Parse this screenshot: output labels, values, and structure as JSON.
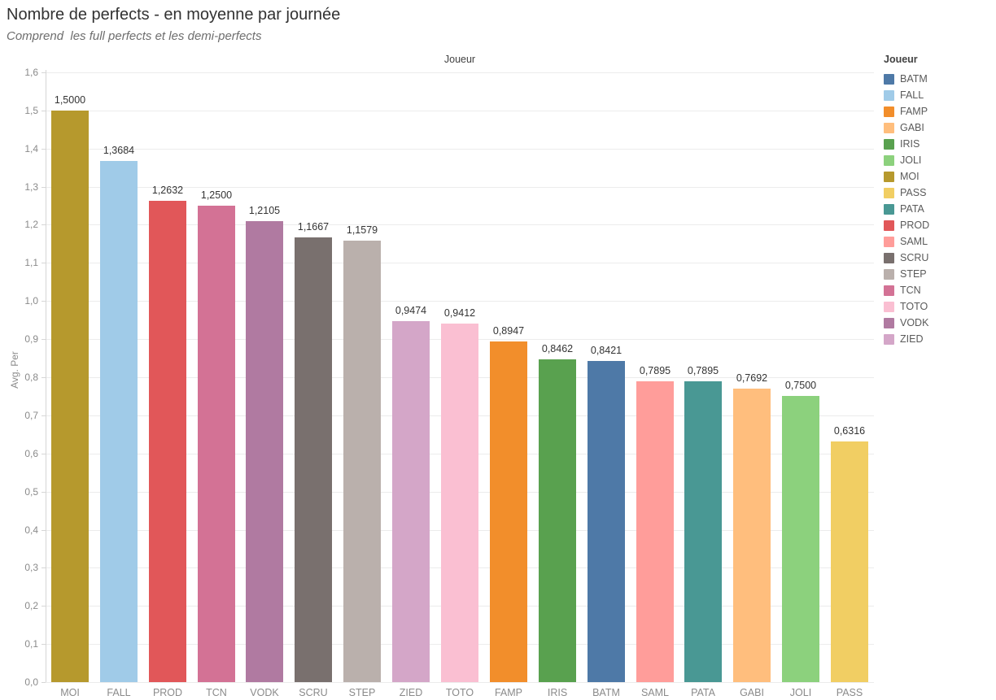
{
  "chart_data": {
    "type": "bar",
    "title": "Nombre de perfects - en moyenne par journée",
    "subtitle": "Comprend  les full perfects et les demi-perfects",
    "x_axis_header": "Joueur",
    "ylabel": "Avg. Per",
    "ylim": [
      0,
      1.6
    ],
    "ytick_step": 0.1,
    "ytick_labels": [
      "0,0",
      "0,1",
      "0,2",
      "0,3",
      "0,4",
      "0,5",
      "0,6",
      "0,7",
      "0,8",
      "0,9",
      "1,0",
      "1,1",
      "1,2",
      "1,3",
      "1,4",
      "1,5",
      "1,6"
    ],
    "grid": true,
    "decimal_separator": ",",
    "categories": [
      "MOI",
      "FALL",
      "PROD",
      "TCN",
      "VODK",
      "SCRU",
      "STEP",
      "ZIED",
      "TOTO",
      "FAMP",
      "IRIS",
      "BATM",
      "SAML",
      "PATA",
      "GABI",
      "JOLI",
      "PASS"
    ],
    "values": [
      1.5,
      1.3684,
      1.2632,
      1.25,
      1.2105,
      1.1667,
      1.1579,
      0.9474,
      0.9412,
      0.8947,
      0.8462,
      0.8421,
      0.7895,
      0.7895,
      0.7692,
      0.75,
      0.6316
    ],
    "value_labels": [
      "1,5000",
      "1,3684",
      "1,2632",
      "1,2500",
      "1,2105",
      "1,1667",
      "1,1579",
      "0,9474",
      "0,9412",
      "0,8947",
      "0,8462",
      "0,8421",
      "0,7895",
      "0,7895",
      "0,7692",
      "0,7500",
      "0,6316"
    ],
    "colors": {
      "BATM": "#4e79a7",
      "FALL": "#a0cbe8",
      "FAMP": "#f28e2b",
      "GABI": "#ffbe7d",
      "IRIS": "#59a14f",
      "JOLI": "#8cd17d",
      "MOI": "#b6992d",
      "PASS": "#f1ce63",
      "PATA": "#499894",
      "PROD": "#e15759",
      "SAML": "#ff9d9a",
      "SCRU": "#79706e",
      "STEP": "#bab0ac",
      "TCN": "#d37295",
      "TOTO": "#fabfd2",
      "VODK": "#b07aa1",
      "ZIED": "#d4a6c8"
    },
    "legend": {
      "title": "Joueur",
      "position": "right",
      "entries": [
        "BATM",
        "FALL",
        "FAMP",
        "GABI",
        "IRIS",
        "JOLI",
        "MOI",
        "PASS",
        "PATA",
        "PROD",
        "SAML",
        "SCRU",
        "STEP",
        "TCN",
        "TOTO",
        "VODK",
        "ZIED"
      ]
    }
  }
}
